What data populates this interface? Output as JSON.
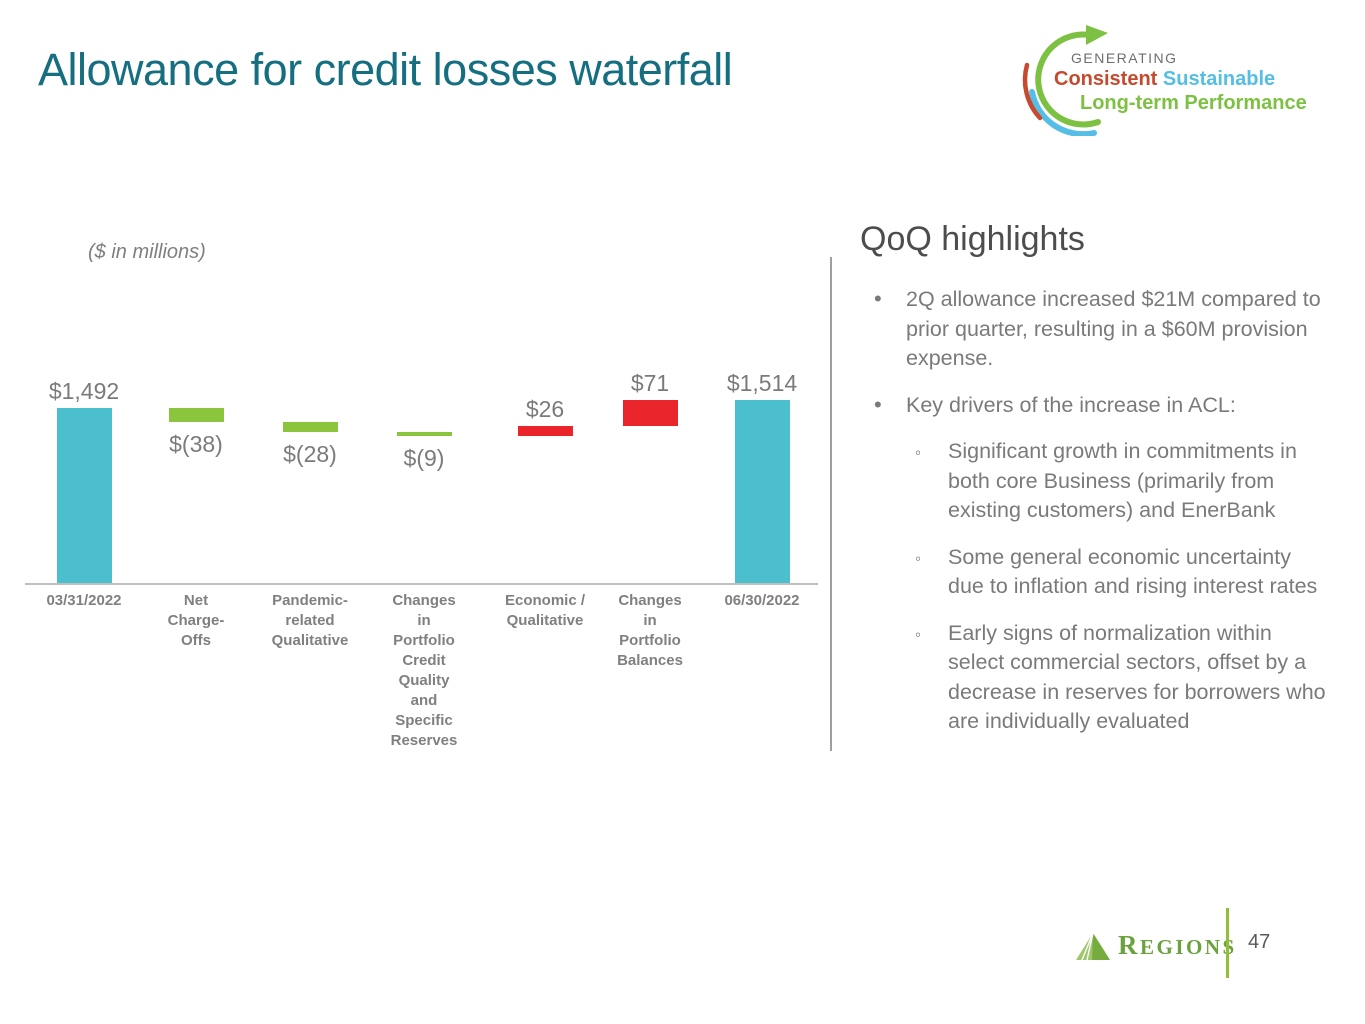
{
  "header": {
    "title": "Allowance for credit losses waterfall"
  },
  "brand_badge": {
    "top_line": "GENERATING",
    "word_consistent": "Consistent",
    "word_sustainable": " Sustainable",
    "bottom_line": "Long-term Performance",
    "colors": {
      "gray": "#6D6E71",
      "red": "#C74A2F",
      "blue": "#54BEE5",
      "green": "#7DC142"
    }
  },
  "chart_data": {
    "type": "bar",
    "subtype": "waterfall",
    "units_note": "($ in millions)",
    "categories": [
      "03/31/2022",
      "Net Charge-Offs",
      "Pandemic-related Qualitative",
      "Changes in Portfolio Credit Quality and Specific Reserves",
      "Economic / Qualitative",
      "Changes in Portfolio Balances",
      "06/30/2022"
    ],
    "bars": [
      {
        "label_lines": "03/31/2022",
        "value": 1492,
        "value_label": "$1,492",
        "kind": "total"
      },
      {
        "label_lines": "Net\nCharge-\nOffs",
        "value": -38,
        "value_label": "$(38)",
        "kind": "decrease"
      },
      {
        "label_lines": "Pandemic-\nrelated\nQualitative",
        "value": -28,
        "value_label": "$(28)",
        "kind": "decrease"
      },
      {
        "label_lines": "Changes\nin\nPortfolio\nCredit\nQuality\nand\nSpecific\nReserves",
        "value": -9,
        "value_label": "$(9)",
        "kind": "decrease"
      },
      {
        "label_lines": "Economic /\nQualitative",
        "value": 26,
        "value_label": "$26",
        "kind": "increase"
      },
      {
        "label_lines": "Changes\nin\nPortfolio\nBalances",
        "value": 71,
        "value_label": "$71",
        "kind": "increase"
      },
      {
        "label_lines": "06/30/2022",
        "value": 1514,
        "value_label": "$1,514",
        "kind": "total"
      }
    ],
    "colors": {
      "total": "#4BBFCD",
      "decrease": "#8BC53D",
      "increase": "#E9252B"
    }
  },
  "highlights": {
    "heading": "QoQ highlights",
    "bullets": [
      {
        "level": 1,
        "text": "2Q allowance increased $21M compared to prior quarter, resulting in a $60M provision expense."
      },
      {
        "level": 1,
        "text": "Key drivers of the increase in ACL:"
      },
      {
        "level": 2,
        "text": "Significant growth in commitments in both core Business (primarily from existing customers) and EnerBank"
      },
      {
        "level": 2,
        "text": "Some general economic uncertainty due to inflation and rising interest rates"
      },
      {
        "level": 2,
        "text": "Early signs of normalization within select commercial sectors, offset by a decrease in reserves for borrowers who are individually evaluated"
      }
    ]
  },
  "footer": {
    "brand_name": "REGIONS",
    "page_number": "47"
  }
}
